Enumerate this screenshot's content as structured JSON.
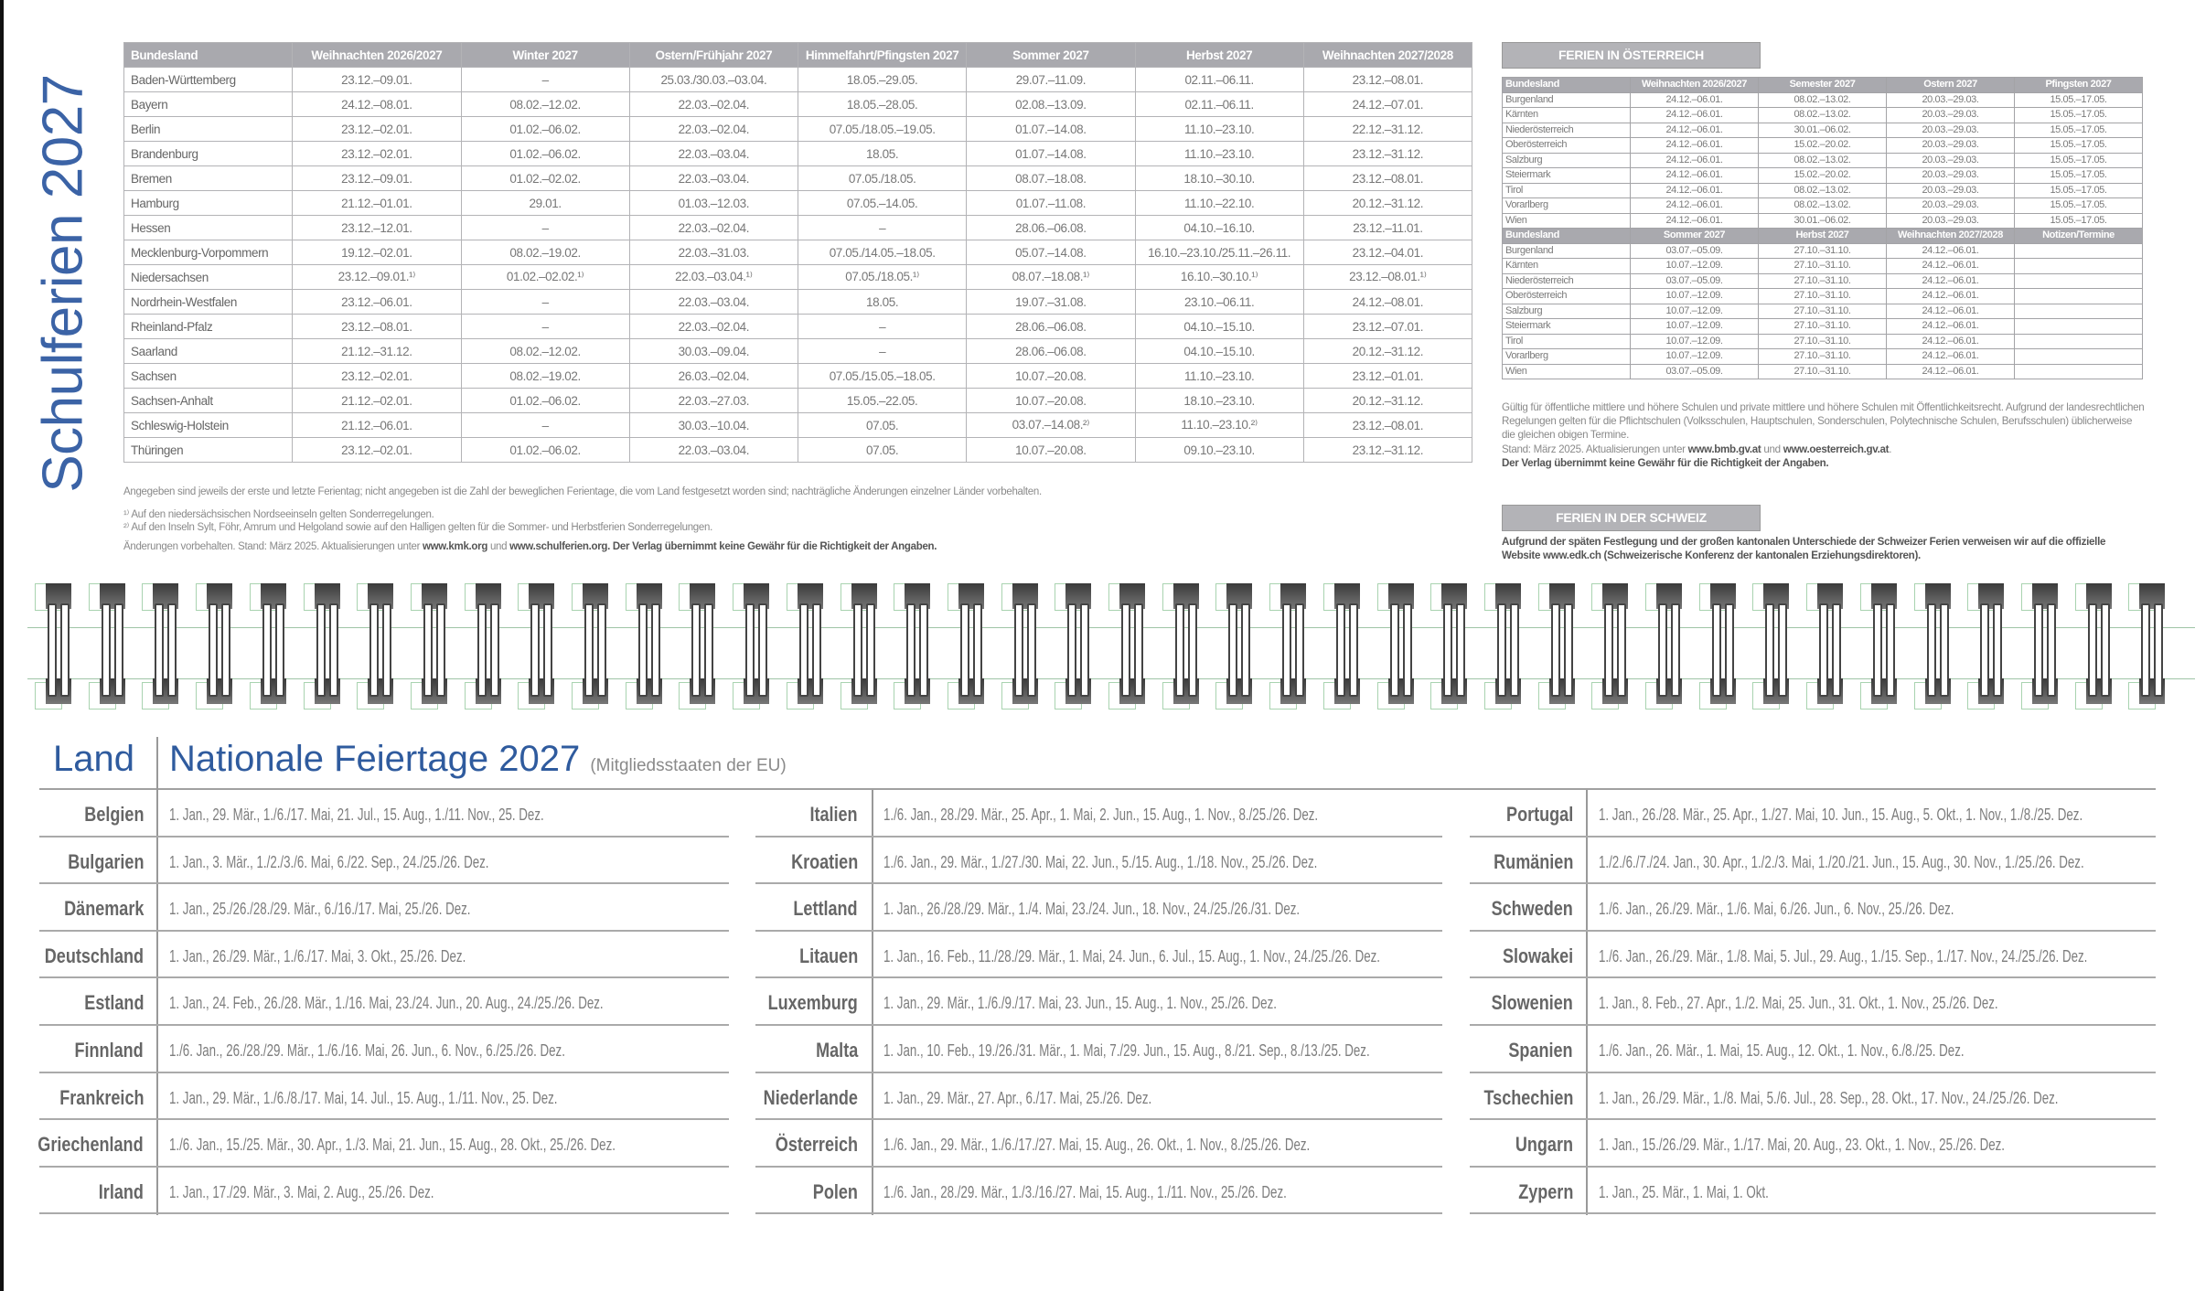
{
  "title": "Schulferien 2027",
  "colors": {
    "title_blue": "#3b63a6",
    "header_gray": "#a9a9ae",
    "text_gray": "#777777"
  },
  "germany": {
    "headers": [
      "Bundesland",
      "Weihnachten 2026/2027",
      "Winter 2027",
      "Ostern/Frühjahr 2027",
      "Himmelfahrt/Pfingsten 2027",
      "Sommer 2027",
      "Herbst 2027",
      "Weihnachten 2027/2028"
    ],
    "rows": [
      [
        "Baden-Württemberg",
        "23.12.–09.01.",
        "–",
        "25.03./30.03.–03.04.",
        "18.05.–29.05.",
        "29.07.–11.09.",
        "02.11.–06.11.",
        "23.12.–08.01."
      ],
      [
        "Bayern",
        "24.12.–08.01.",
        "08.02.–12.02.",
        "22.03.–02.04.",
        "18.05.–28.05.",
        "02.08.–13.09.",
        "02.11.–06.11.",
        "24.12.–07.01."
      ],
      [
        "Berlin",
        "23.12.–02.01.",
        "01.02.–06.02.",
        "22.03.–02.04.",
        "07.05./18.05.–19.05.",
        "01.07.–14.08.",
        "11.10.–23.10.",
        "22.12.–31.12."
      ],
      [
        "Brandenburg",
        "23.12.–02.01.",
        "01.02.–06.02.",
        "22.03.–03.04.",
        "18.05.",
        "01.07.–14.08.",
        "11.10.–23.10.",
        "23.12.–31.12."
      ],
      [
        "Bremen",
        "23.12.–09.01.",
        "01.02.–02.02.",
        "22.03.–03.04.",
        "07.05./18.05.",
        "08.07.–18.08.",
        "18.10.–30.10.",
        "23.12.–08.01."
      ],
      [
        "Hamburg",
        "21.12.–01.01.",
        "29.01.",
        "01.03.–12.03.",
        "07.05.–14.05.",
        "01.07.–11.08.",
        "11.10.–22.10.",
        "20.12.–31.12."
      ],
      [
        "Hessen",
        "23.12.–12.01.",
        "–",
        "22.03.–02.04.",
        "–",
        "28.06.–06.08.",
        "04.10.–16.10.",
        "23.12.–11.01."
      ],
      [
        "Mecklenburg-Vorpommern",
        "19.12.–02.01.",
        "08.02.–19.02.",
        "22.03.–31.03.",
        "07.05./14.05.–18.05.",
        "05.07.–14.08.",
        "16.10.–23.10./25.11.–26.11.",
        "23.12.–04.01."
      ],
      [
        "Niedersachsen",
        "23.12.–09.01.¹⁾",
        "01.02.–02.02.¹⁾",
        "22.03.–03.04.¹⁾",
        "07.05./18.05.¹⁾",
        "08.07.–18.08.¹⁾",
        "16.10.–30.10.¹⁾",
        "23.12.–08.01.¹⁾"
      ],
      [
        "Nordrhein-Westfalen",
        "23.12.–06.01.",
        "–",
        "22.03.–03.04.",
        "18.05.",
        "19.07.–31.08.",
        "23.10.–06.11.",
        "24.12.–08.01."
      ],
      [
        "Rheinland-Pfalz",
        "23.12.–08.01.",
        "–",
        "22.03.–02.04.",
        "–",
        "28.06.–06.08.",
        "04.10.–15.10.",
        "23.12.–07.01."
      ],
      [
        "Saarland",
        "21.12.–31.12.",
        "08.02.–12.02.",
        "30.03.–09.04.",
        "–",
        "28.06.–06.08.",
        "04.10.–15.10.",
        "20.12.–31.12."
      ],
      [
        "Sachsen",
        "23.12.–02.01.",
        "08.02.–19.02.",
        "26.03.–02.04.",
        "07.05./15.05.–18.05.",
        "10.07.–20.08.",
        "11.10.–23.10.",
        "23.12.–01.01."
      ],
      [
        "Sachsen-Anhalt",
        "21.12.–02.01.",
        "01.02.–06.02.",
        "22.03.–27.03.",
        "15.05.–22.05.",
        "10.07.–20.08.",
        "18.10.–23.10.",
        "20.12.–31.12."
      ],
      [
        "Schleswig-Holstein",
        "21.12.–06.01.",
        "–",
        "30.03.–10.04.",
        "07.05.",
        "03.07.–14.08.²⁾",
        "11.10.–23.10.²⁾",
        "23.12.–08.01."
      ],
      [
        "Thüringen",
        "23.12.–02.01.",
        "01.02.–06.02.",
        "22.03.–03.04.",
        "07.05.",
        "10.07.–20.08.",
        "09.10.–23.10.",
        "23.12.–31.12."
      ]
    ],
    "notes": [
      [
        {
          "t": "Angegeben sind jeweils der erste und letzte Ferientag; nicht angegeben ist die Zahl der beweglichen Ferientage, die vom Land festgesetzt worden sind; nachträgliche Änderungen einzelner Länder vorbehalten."
        }
      ],
      [
        {
          "t": "¹⁾ Auf den niedersächsischen Nordseeinseln gelten Sonderregelungen."
        }
      ],
      [
        {
          "t": "²⁾ Auf den Inseln Sylt, Föhr, Amrum und Helgoland sowie auf den Halligen gelten für die Sommer- und Herbstferien Sonderregelungen."
        }
      ],
      [
        {
          "t": "Änderungen vorbehalten. Stand: März 2025. Aktualisierungen unter "
        },
        {
          "t": "www.kmk.org",
          "b": true
        },
        {
          "t": " und "
        },
        {
          "t": "www.schulferien.org. Der Verlag übernimmt keine Gewähr für die Richtigkeit der Angaben.",
          "b": true
        }
      ]
    ]
  },
  "austria": {
    "badge": "FERIEN IN ÖSTERREICH",
    "headers1": [
      "Bundesland",
      "Weihnachten 2026/2027",
      "Semester 2027",
      "Ostern 2027",
      "Pfingsten 2027"
    ],
    "rows1": [
      [
        "Burgenland",
        "24.12.–06.01.",
        "08.02.–13.02.",
        "20.03.–29.03.",
        "15.05.–17.05."
      ],
      [
        "Kärnten",
        "24.12.–06.01.",
        "08.02.–13.02.",
        "20.03.–29.03.",
        "15.05.–17.05."
      ],
      [
        "Niederösterreich",
        "24.12.–06.01.",
        "30.01.–06.02.",
        "20.03.–29.03.",
        "15.05.–17.05."
      ],
      [
        "Oberösterreich",
        "24.12.–06.01.",
        "15.02.–20.02.",
        "20.03.–29.03.",
        "15.05.–17.05."
      ],
      [
        "Salzburg",
        "24.12.–06.01.",
        "08.02.–13.02.",
        "20.03.–29.03.",
        "15.05.–17.05."
      ],
      [
        "Steiermark",
        "24.12.–06.01.",
        "15.02.–20.02.",
        "20.03.–29.03.",
        "15.05.–17.05."
      ],
      [
        "Tirol",
        "24.12.–06.01.",
        "08.02.–13.02.",
        "20.03.–29.03.",
        "15.05.–17.05."
      ],
      [
        "Vorarlberg",
        "24.12.–06.01.",
        "08.02.–13.02.",
        "20.03.–29.03.",
        "15.05.–17.05."
      ],
      [
        "Wien",
        "24.12.–06.01.",
        "30.01.–06.02.",
        "20.03.–29.03.",
        "15.05.–17.05."
      ]
    ],
    "headers2": [
      "Bundesland",
      "Sommer 2027",
      "Herbst 2027",
      "Weihnachten 2027/2028",
      "Notizen/Termine"
    ],
    "rows2": [
      [
        "Burgenland",
        "03.07.–05.09.",
        "27.10.–31.10.",
        "24.12.–06.01.",
        ""
      ],
      [
        "Kärnten",
        "10.07.–12.09.",
        "27.10.–31.10.",
        "24.12.–06.01.",
        ""
      ],
      [
        "Niederösterreich",
        "03.07.–05.09.",
        "27.10.–31.10.",
        "24.12.–06.01.",
        ""
      ],
      [
        "Oberösterreich",
        "10.07.–12.09.",
        "27.10.–31.10.",
        "24.12.–06.01.",
        ""
      ],
      [
        "Salzburg",
        "10.07.–12.09.",
        "27.10.–31.10.",
        "24.12.–06.01.",
        ""
      ],
      [
        "Steiermark",
        "10.07.–12.09.",
        "27.10.–31.10.",
        "24.12.–06.01.",
        ""
      ],
      [
        "Tirol",
        "10.07.–12.09.",
        "27.10.–31.10.",
        "24.12.–06.01.",
        ""
      ],
      [
        "Vorarlberg",
        "10.07.–12.09.",
        "27.10.–31.10.",
        "24.12.–06.01.",
        ""
      ],
      [
        "Wien",
        "03.07.–05.09.",
        "27.10.–31.10.",
        "24.12.–06.01.",
        ""
      ]
    ],
    "note": [
      {
        "t": "Gültig für öffentliche mittlere und höhere Schulen und private mittlere und höhere Schulen mit Öffentlichkeitsrecht. Aufgrund der landesrechtlichen Regelungen gelten für die Pflichtschulen (Volksschulen, Hauptschulen, Sonderschulen, Polytechnische Schulen, Berufsschulen) üblicherweise die gleichen obigen Termine."
      }
    ],
    "stand": [
      {
        "t": "Stand: März 2025. Aktualisierungen unter "
      },
      {
        "t": "www.bmb.gv.at",
        "b": true
      },
      {
        "t": " und "
      },
      {
        "t": "www.oesterreich.gv.at",
        "b": true
      },
      {
        "t": "."
      }
    ],
    "disclaimer": "Der Verlag übernimmt keine Gewähr für die Richtigkeit der Angaben."
  },
  "switzerland": {
    "badge": "FERIEN IN DER SCHWEIZ",
    "text": "Aufgrund der späten Festlegung und der großen kantonalen Unterschiede der Schweizer Ferien verweisen wir auf die offizielle Website www.edk.ch (Schweizerische Konferenz der kantonalen Erziehungsdirektoren)."
  },
  "holidays": {
    "land_label": "Land",
    "title": "Nationale Feiertage 2027",
    "subtitle": "(Mitgliedsstaaten der EU)",
    "columns": [
      [
        {
          "country": "Belgien",
          "dates": "1. Jan., 29. Mär., 1./6./17. Mai, 21. Jul., 15. Aug., 1./11. Nov., 25. Dez."
        },
        {
          "country": "Bulgarien",
          "dates": "1. Jan., 3. Mär., 1./2./3./6. Mai, 6./22. Sep., 24./25./26. Dez."
        },
        {
          "country": "Dänemark",
          "dates": "1. Jan., 25./26./28./29. Mär., 6./16./17. Mai, 25./26. Dez."
        },
        {
          "country": "Deutschland",
          "dates": "1. Jan., 26./29. Mär., 1./6./17. Mai, 3. Okt., 25./26. Dez."
        },
        {
          "country": "Estland",
          "dates": "1. Jan., 24. Feb., 26./28. Mär., 1./16. Mai, 23./24. Jun., 20. Aug., 24./25./26. Dez."
        },
        {
          "country": "Finnland",
          "dates": "1./6. Jan., 26./28./29. Mär., 1./6./16. Mai, 26. Jun., 6. Nov., 6./25./26. Dez."
        },
        {
          "country": "Frankreich",
          "dates": "1. Jan., 29. Mär., 1./6./8./17. Mai, 14. Jul., 15. Aug., 1./11. Nov., 25. Dez."
        },
        {
          "country": "Griechenland",
          "dates": "1./6. Jan., 15./25. Mär., 30. Apr., 1./3. Mai, 21. Jun., 15. Aug., 28. Okt., 25./26. Dez."
        },
        {
          "country": "Irland",
          "dates": "1. Jan., 17./29. Mär., 3. Mai, 2. Aug., 25./26. Dez."
        }
      ],
      [
        {
          "country": "Italien",
          "dates": "1./6. Jan., 28./29. Mär., 25. Apr., 1. Mai, 2. Jun., 15. Aug., 1. Nov., 8./25./26. Dez."
        },
        {
          "country": "Kroatien",
          "dates": "1./6. Jan., 29. Mär., 1./27./30. Mai, 22. Jun., 5./15. Aug., 1./18. Nov., 25./26. Dez."
        },
        {
          "country": "Lettland",
          "dates": "1. Jan., 26./28./29. Mär., 1./4. Mai, 23./24. Jun., 18. Nov., 24./25./26./31. Dez."
        },
        {
          "country": "Litauen",
          "dates": "1. Jan., 16. Feb., 11./28./29. Mär., 1. Mai, 24. Jun., 6. Jul., 15. Aug., 1. Nov., 24./25./26. Dez."
        },
        {
          "country": "Luxemburg",
          "dates": "1. Jan., 29. Mär., 1./6./9./17. Mai, 23. Jun., 15. Aug., 1. Nov., 25./26. Dez."
        },
        {
          "country": "Malta",
          "dates": "1. Jan., 10. Feb., 19./26./31. Mär., 1. Mai, 7./29. Jun., 15. Aug., 8./21. Sep., 8./13./25. Dez."
        },
        {
          "country": "Niederlande",
          "dates": "1. Jan., 29. Mär., 27. Apr., 6./17. Mai, 25./26. Dez."
        },
        {
          "country": "Österreich",
          "dates": "1./6. Jan., 29. Mär., 1./6./17./27. Mai, 15. Aug., 26. Okt., 1. Nov., 8./25./26. Dez."
        },
        {
          "country": "Polen",
          "dates": "1./6. Jan., 28./29. Mär., 1./3./16./27. Mai, 15. Aug., 1./11. Nov., 25./26. Dez."
        }
      ],
      [
        {
          "country": "Portugal",
          "dates": "1. Jan., 26./28. Mär., 25. Apr., 1./27. Mai, 10. Jun., 15. Aug., 5. Okt., 1. Nov., 1./8./25. Dez."
        },
        {
          "country": "Rumänien",
          "dates": "1./2./6./7./24. Jan., 30. Apr., 1./2./3. Mai, 1./20./21. Jun., 15. Aug., 30. Nov., 1./25./26. Dez."
        },
        {
          "country": "Schweden",
          "dates": "1./6. Jan., 26./29. Mär., 1./6. Mai, 6./26. Jun., 6. Nov., 25./26. Dez."
        },
        {
          "country": "Slowakei",
          "dates": "1./6. Jan., 26./29. Mär., 1./8. Mai, 5. Jul., 29. Aug., 1./15. Sep., 1./17. Nov., 24./25./26. Dez."
        },
        {
          "country": "Slowenien",
          "dates": "1. Jan., 8. Feb., 27. Apr., 1./2. Mai, 25. Jun., 31. Okt., 1. Nov., 25./26. Dez."
        },
        {
          "country": "Spanien",
          "dates": "1./6. Jan., 26. Mär., 1. Mai, 15. Aug., 12. Okt., 1. Nov., 6./8./25. Dez."
        },
        {
          "country": "Tschechien",
          "dates": "1. Jan., 26./29. Mär., 1./8. Mai, 5./6. Jul., 28. Sep., 28. Okt., 17. Nov., 24./25./26. Dez."
        },
        {
          "country": "Ungarn",
          "dates": "1. Jan., 15./26./29. Mär., 1./17. Mai, 20. Aug., 23. Okt., 1. Nov., 25./26. Dez."
        },
        {
          "country": "Zypern",
          "dates": "1. Jan., 25. Mär., 1. Mai, 1. Okt."
        }
      ]
    ]
  }
}
